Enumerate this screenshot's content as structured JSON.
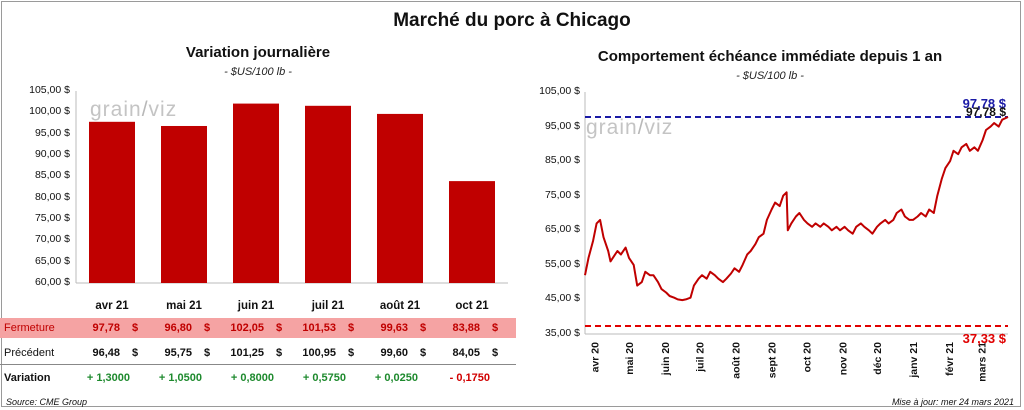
{
  "main_title": "Marché du porc à Chicago",
  "watermark": "grainwiz",
  "source": "Source: CME Group",
  "updated": "Mise à jour: mer 24 mars 2021",
  "colors": {
    "bar": "#c00000",
    "line": "#c00000",
    "high_line": "#1a1aa6",
    "low_line": "#e00000",
    "fermeture_bg": "#f5a3a3",
    "positive": "#1e8a2e",
    "negative": "#d10000"
  },
  "chart_data": [
    {
      "type": "bar",
      "title": "Variation journalière",
      "subtitle": "- $US/100 lb -",
      "categories": [
        "avr 21",
        "mai 21",
        "juin 21",
        "juil 21",
        "août 21",
        "oct 21"
      ],
      "values": [
        97.78,
        96.8,
        102.05,
        101.53,
        99.63,
        83.88
      ],
      "ylim": [
        60,
        105
      ],
      "yticks": [
        "60,00 $",
        "65,00 $",
        "70,00 $",
        "75,00 $",
        "80,00 $",
        "85,00 $",
        "90,00 $",
        "95,00 $",
        "100,00 $",
        "105,00 $"
      ],
      "grid": false
    },
    {
      "type": "line",
      "title": "Comportement échéance immédiate depuis 1 an",
      "subtitle": "- $US/100 lb -",
      "x_labels": [
        "avr 20",
        "mai 20",
        "juin 20",
        "juil 20",
        "août 20",
        "sept 20",
        "oct 20",
        "nov 20",
        "déc 20",
        "janv 21",
        "févr 21",
        "mars 21"
      ],
      "ylim": [
        35,
        105
      ],
      "yticks": [
        "35,00 $",
        "45,00 $",
        "55,00 $",
        "65,00 $",
        "75,00 $",
        "85,00 $",
        "95,00 $",
        "105,00 $"
      ],
      "x_start": "2020-03-24",
      "x_end": "2021-03-24",
      "series": [
        {
          "points": [
            [
              "2020-03-24",
              52
            ],
            [
              "2020-03-27",
              57
            ],
            [
              "2020-03-31",
              62
            ],
            [
              "2020-04-03",
              67
            ],
            [
              "2020-04-06",
              68
            ],
            [
              "2020-04-09",
              63
            ],
            [
              "2020-04-13",
              59
            ],
            [
              "2020-04-15",
              56
            ],
            [
              "2020-04-17",
              57
            ],
            [
              "2020-04-21",
              59
            ],
            [
              "2020-04-24",
              58
            ],
            [
              "2020-04-28",
              60
            ],
            [
              "2020-05-01",
              57
            ],
            [
              "2020-05-05",
              55
            ],
            [
              "2020-05-08",
              49
            ],
            [
              "2020-05-12",
              50
            ],
            [
              "2020-05-15",
              53
            ],
            [
              "2020-05-19",
              52
            ],
            [
              "2020-05-22",
              52
            ],
            [
              "2020-05-26",
              50
            ],
            [
              "2020-05-29",
              48
            ],
            [
              "2020-06-02",
              47
            ],
            [
              "2020-06-05",
              46
            ],
            [
              "2020-06-09",
              45.5
            ],
            [
              "2020-06-12",
              45
            ],
            [
              "2020-06-16",
              44.8
            ],
            [
              "2020-06-19",
              45
            ],
            [
              "2020-06-23",
              45.5
            ],
            [
              "2020-06-26",
              49
            ],
            [
              "2020-06-30",
              51
            ],
            [
              "2020-07-03",
              52
            ],
            [
              "2020-07-07",
              51
            ],
            [
              "2020-07-10",
              53
            ],
            [
              "2020-07-14",
              52
            ],
            [
              "2020-07-17",
              51
            ],
            [
              "2020-07-21",
              50
            ],
            [
              "2020-07-24",
              51
            ],
            [
              "2020-07-28",
              52.5
            ],
            [
              "2020-07-31",
              54
            ],
            [
              "2020-08-04",
              53
            ],
            [
              "2020-08-07",
              55
            ],
            [
              "2020-08-11",
              58
            ],
            [
              "2020-08-14",
              59
            ],
            [
              "2020-08-18",
              61
            ],
            [
              "2020-08-21",
              63
            ],
            [
              "2020-08-25",
              64
            ],
            [
              "2020-08-28",
              68
            ],
            [
              "2020-09-01",
              71
            ],
            [
              "2020-09-04",
              73
            ],
            [
              "2020-09-08",
              72
            ],
            [
              "2020-09-11",
              75
            ],
            [
              "2020-09-14",
              76
            ],
            [
              "2020-09-15",
              65
            ],
            [
              "2020-09-18",
              67
            ],
            [
              "2020-09-22",
              69
            ],
            [
              "2020-09-25",
              70
            ],
            [
              "2020-09-29",
              68
            ],
            [
              "2020-10-02",
              67
            ],
            [
              "2020-10-06",
              66
            ],
            [
              "2020-10-09",
              67
            ],
            [
              "2020-10-13",
              66
            ],
            [
              "2020-10-16",
              67
            ],
            [
              "2020-10-20",
              66
            ],
            [
              "2020-10-23",
              65
            ],
            [
              "2020-10-27",
              66
            ],
            [
              "2020-10-30",
              65
            ],
            [
              "2020-11-03",
              66
            ],
            [
              "2020-11-06",
              65
            ],
            [
              "2020-11-10",
              64
            ],
            [
              "2020-11-13",
              66
            ],
            [
              "2020-11-17",
              67
            ],
            [
              "2020-11-20",
              66
            ],
            [
              "2020-11-24",
              65
            ],
            [
              "2020-11-27",
              64
            ],
            [
              "2020-12-01",
              66
            ],
            [
              "2020-12-04",
              67
            ],
            [
              "2020-12-08",
              68
            ],
            [
              "2020-12-11",
              67
            ],
            [
              "2020-12-15",
              68
            ],
            [
              "2020-12-18",
              70
            ],
            [
              "2020-12-22",
              71
            ],
            [
              "2020-12-25",
              69
            ],
            [
              "2020-12-29",
              68
            ],
            [
              "2021-01-01",
              68
            ],
            [
              "2021-01-05",
              69
            ],
            [
              "2021-01-08",
              70
            ],
            [
              "2021-01-12",
              69
            ],
            [
              "2021-01-15",
              71
            ],
            [
              "2021-01-19",
              70
            ],
            [
              "2021-01-22",
              75
            ],
            [
              "2021-01-26",
              80
            ],
            [
              "2021-01-29",
              83
            ],
            [
              "2021-02-02",
              85
            ],
            [
              "2021-02-05",
              88
            ],
            [
              "2021-02-09",
              87
            ],
            [
              "2021-02-12",
              89
            ],
            [
              "2021-02-16",
              90
            ],
            [
              "2021-02-19",
              88
            ],
            [
              "2021-02-23",
              89
            ],
            [
              "2021-02-26",
              88
            ],
            [
              "2021-03-02",
              91
            ],
            [
              "2021-03-05",
              94
            ],
            [
              "2021-03-09",
              95
            ],
            [
              "2021-03-12",
              96
            ],
            [
              "2021-03-16",
              95
            ],
            [
              "2021-03-19",
              97
            ],
            [
              "2021-03-24",
              97.78
            ]
          ]
        }
      ],
      "reference_lines": [
        {
          "value": 97.78,
          "label": "97,78 $",
          "style": "dashed",
          "color": "#1a1aa6"
        },
        {
          "value": 37.33,
          "label": "37,33 $",
          "style": "dashed",
          "color": "#e00000"
        }
      ],
      "last_value_label": "97,78 $"
    }
  ],
  "table": {
    "rows": [
      {
        "label": "Fermeture",
        "cells": [
          {
            "v": "97,78",
            "c": "$"
          },
          {
            "v": "96,80",
            "c": "$"
          },
          {
            "v": "102,05",
            "c": "$"
          },
          {
            "v": "101,53",
            "c": "$"
          },
          {
            "v": "99,63",
            "c": "$"
          },
          {
            "v": "83,88",
            "c": "$"
          }
        ]
      },
      {
        "label": "Précédent",
        "cells": [
          {
            "v": "96,48",
            "c": "$"
          },
          {
            "v": "95,75",
            "c": "$"
          },
          {
            "v": "101,25",
            "c": "$"
          },
          {
            "v": "100,95",
            "c": "$"
          },
          {
            "v": "99,60",
            "c": "$"
          },
          {
            "v": "84,05",
            "c": "$"
          }
        ]
      },
      {
        "label": "Variation",
        "cells": [
          {
            "v": "+ 1,3000",
            "sign": "pos"
          },
          {
            "v": "+ 1,0500",
            "sign": "pos"
          },
          {
            "v": "+ 0,8000",
            "sign": "pos"
          },
          {
            "v": "+ 0,5750",
            "sign": "pos"
          },
          {
            "v": "+ 0,0250",
            "sign": "pos"
          },
          {
            "v": "- 0,1750",
            "sign": "neg"
          }
        ]
      }
    ]
  }
}
